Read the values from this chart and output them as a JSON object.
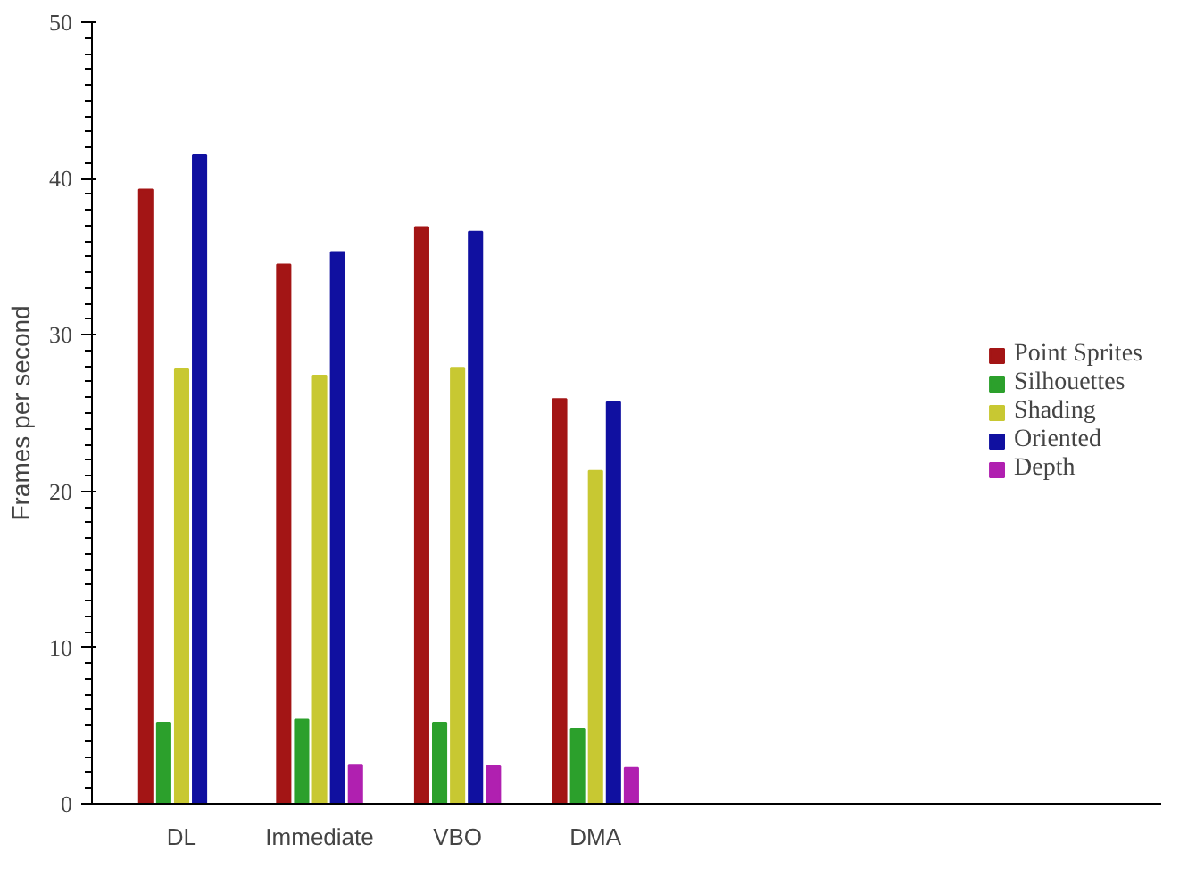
{
  "chart_data": {
    "type": "bar",
    "ylabel": "Frames per second",
    "categories": [
      "DL",
      "Immediate",
      "VBO",
      "DMA"
    ],
    "series": [
      {
        "name": "Point Sprites",
        "color": "#a31515",
        "values": [
          39.3,
          34.5,
          36.9,
          25.9
        ]
      },
      {
        "name": "Silhouettes",
        "color": "#2ca02c",
        "values": [
          5.2,
          5.4,
          5.2,
          4.8
        ]
      },
      {
        "name": "Shading",
        "color": "#c8c832",
        "values": [
          27.8,
          27.4,
          27.9,
          21.3
        ]
      },
      {
        "name": "Oriented",
        "color": "#1010a0",
        "values": [
          41.5,
          35.3,
          36.6,
          25.7
        ]
      },
      {
        "name": "Depth",
        "color": "#b020b0",
        "values": [
          null,
          2.5,
          2.4,
          2.3
        ]
      }
    ],
    "ylim": [
      0,
      50
    ],
    "yticks": [
      0,
      10,
      20,
      30,
      40,
      50
    ],
    "grid": false,
    "legend": "right"
  }
}
